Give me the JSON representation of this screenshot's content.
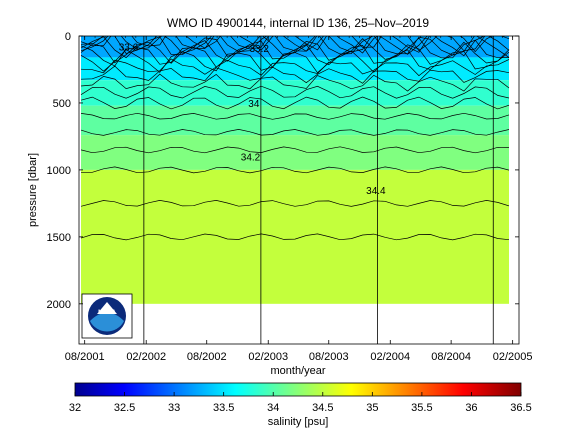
{
  "chart_data": {
    "type": "heatmap",
    "title": "WMO ID 4900144, internal ID 136, 25–Nov–2019",
    "xlabel": "month/year",
    "ylabel": "pressure [dbar]",
    "x_ticks": [
      "08/2001",
      "02/2002",
      "08/2002",
      "02/2003",
      "08/2003",
      "02/2004",
      "08/2004",
      "02/2005"
    ],
    "x_range": [
      "2001-07-15",
      "2005-02-20"
    ],
    "y_ticks": [
      0,
      500,
      1000,
      1500,
      2000
    ],
    "y_range": [
      0,
      2300
    ],
    "y_reversed": true,
    "colorbar": {
      "label": "salinity [psu]",
      "ticks": [
        "32",
        "32.5",
        "33",
        "33.5",
        "34",
        "34.5",
        "35",
        "35.5",
        "36",
        "36.5"
      ],
      "range": [
        32,
        36.5
      ],
      "colormap": "jet"
    },
    "contour_labels": [
      {
        "text": "33.6",
        "date": "2001-12-10",
        "pressure": 80
      },
      {
        "text": "33.2",
        "date": "2003-01-05",
        "pressure": 90
      },
      {
        "text": "34",
        "date": "2002-12-20",
        "pressure": 500
      },
      {
        "text": "34.2",
        "date": "2002-12-10",
        "pressure": 900
      },
      {
        "text": "34.4",
        "date": "2003-12-20",
        "pressure": 1150
      }
    ],
    "salinity_bands": [
      {
        "p_top": 0,
        "p_bottom": 160,
        "salinity": 33.3
      },
      {
        "p_top": 160,
        "p_bottom": 330,
        "salinity": 33.6
      },
      {
        "p_top": 330,
        "p_bottom": 520,
        "salinity": 33.9
      },
      {
        "p_top": 520,
        "p_bottom": 740,
        "salinity": 34.1
      },
      {
        "p_top": 740,
        "p_bottom": 1000,
        "salinity": 34.25
      },
      {
        "p_top": 1000,
        "p_bottom": 2000,
        "salinity": 34.55
      }
    ],
    "deployment_markers": [
      "2002-01-25",
      "2003-01-10",
      "2003-12-25",
      "2004-12-05"
    ],
    "grid": false
  },
  "logo": {
    "text": "NOAA",
    "colors": {
      "dark": "#0b2a7a",
      "light": "#2b8fd8"
    }
  }
}
